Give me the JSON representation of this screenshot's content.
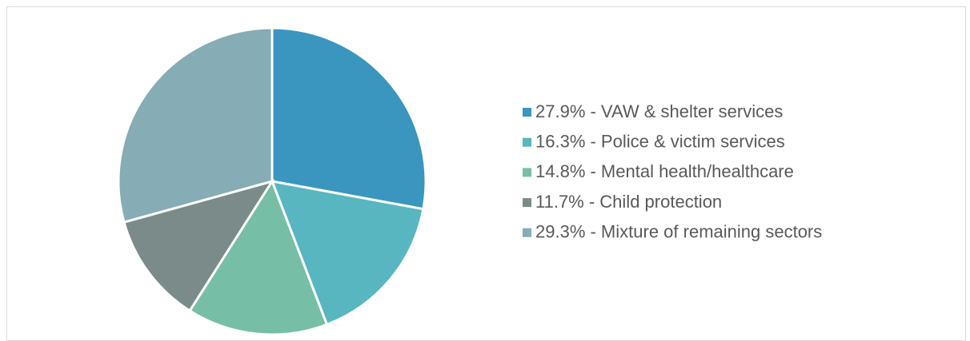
{
  "chart_data": {
    "type": "pie",
    "categories": [
      "27.9% - VAW & shelter services",
      "16.3% - Police & victim services",
      "14.8% - Mental health/healthcare",
      "11.7% - Child protection",
      "29.3% - Mixture of remaining sectors"
    ],
    "values": [
      27.9,
      16.3,
      14.8,
      11.7,
      29.3
    ],
    "colors": [
      "#3a96bf",
      "#58b6c0",
      "#77bea6",
      "#7a8b8a",
      "#86acb5"
    ],
    "legend": "right"
  }
}
